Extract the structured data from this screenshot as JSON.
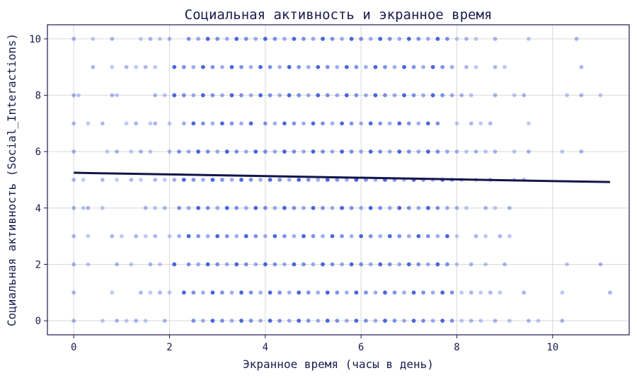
{
  "chart_data": {
    "type": "scatter",
    "title": "Социальная активность и экранное время",
    "xlabel": "Экранное время (часы в день)",
    "ylabel": "Социальная активность (Social_Interactions)",
    "xlim": [
      -0.55,
      11.6
    ],
    "ylim": [
      -0.5,
      10.5
    ],
    "xticks": [
      0,
      2,
      4,
      6,
      8,
      10
    ],
    "yticks": [
      0,
      2,
      4,
      6,
      8,
      10
    ],
    "grid": true,
    "point_color": "#2a4bd7",
    "trend_color": "#14144a",
    "trendline": {
      "x": [
        0,
        11.2
      ],
      "y": [
        5.25,
        4.92
      ]
    },
    "points": [
      {
        "y": 10,
        "x": [
          0,
          0.4,
          0.8,
          1.4,
          1.6,
          1.8,
          2.0,
          2.4,
          2.6,
          2.8,
          3.0,
          3.2,
          3.4,
          3.6,
          3.8,
          4.0,
          4.2,
          4.4,
          4.6,
          4.8,
          5.0,
          5.2,
          5.4,
          5.6,
          5.8,
          6.0,
          6.2,
          6.4,
          6.6,
          6.8,
          7.0,
          7.2,
          7.4,
          7.6,
          7.8,
          8.0,
          8.2,
          8.4,
          8.8,
          9.5,
          10.5
        ]
      },
      {
        "y": 9,
        "x": [
          0.4,
          0.8,
          1.1,
          1.3,
          1.5,
          1.7,
          2.1,
          2.3,
          2.5,
          2.7,
          2.9,
          3.1,
          3.3,
          3.5,
          3.7,
          3.9,
          4.1,
          4.3,
          4.5,
          4.7,
          4.9,
          5.1,
          5.3,
          5.5,
          5.7,
          5.9,
          6.1,
          6.3,
          6.5,
          6.7,
          6.9,
          7.1,
          7.3,
          7.5,
          7.7,
          7.9,
          8.2,
          8.4,
          8.8,
          9.0,
          10.6
        ]
      },
      {
        "y": 8,
        "x": [
          0,
          0.1,
          0.8,
          0.9,
          1.7,
          1.9,
          2.1,
          2.3,
          2.5,
          2.7,
          2.9,
          3.1,
          3.3,
          3.5,
          3.7,
          3.9,
          4.1,
          4.3,
          4.5,
          4.7,
          4.9,
          5.1,
          5.3,
          5.5,
          5.7,
          5.9,
          6.1,
          6.3,
          6.5,
          6.7,
          6.9,
          7.1,
          7.3,
          7.5,
          7.7,
          7.9,
          8.1,
          8.3,
          8.8,
          9.2,
          9.4,
          10.3,
          10.6,
          11.0
        ]
      },
      {
        "y": 7,
        "x": [
          0,
          0.3,
          0.6,
          1.1,
          1.3,
          1.6,
          1.7,
          2.0,
          2.3,
          2.5,
          2.7,
          2.9,
          3.1,
          3.3,
          3.5,
          3.7,
          4.0,
          4.2,
          4.4,
          4.6,
          4.8,
          5.0,
          5.2,
          5.4,
          5.6,
          5.8,
          6.0,
          6.2,
          6.4,
          6.6,
          6.8,
          7.0,
          7.2,
          7.4,
          7.6,
          8.0,
          8.3,
          8.5,
          8.7,
          9.5
        ]
      },
      {
        "y": 6,
        "x": [
          0,
          0.7,
          0.9,
          1.2,
          1.4,
          1.6,
          2.0,
          2.2,
          2.4,
          2.6,
          2.8,
          3.0,
          3.2,
          3.4,
          3.6,
          3.8,
          4.0,
          4.2,
          4.4,
          4.6,
          4.8,
          5.0,
          5.2,
          5.4,
          5.6,
          5.8,
          6.0,
          6.2,
          6.4,
          6.6,
          6.8,
          7.0,
          7.2,
          7.4,
          7.6,
          7.8,
          8.0,
          8.2,
          8.4,
          8.6,
          8.8,
          9.2,
          9.5,
          10.2,
          10.6
        ]
      },
      {
        "y": 5,
        "x": [
          0,
          0.2,
          0.6,
          0.9,
          1.2,
          1.4,
          1.7,
          1.9,
          2.1,
          2.3,
          2.5,
          2.7,
          2.9,
          3.1,
          3.3,
          3.5,
          3.7,
          3.9,
          4.1,
          4.3,
          4.5,
          4.7,
          4.9,
          5.1,
          5.3,
          5.5,
          5.7,
          5.9,
          6.1,
          6.3,
          6.5,
          6.7,
          6.9,
          7.1,
          7.3,
          7.5,
          7.7,
          7.9,
          8.1,
          8.4,
          8.7,
          9.2,
          9.4
        ]
      },
      {
        "y": 4,
        "x": [
          0,
          0.2,
          0.3,
          0.6,
          1.5,
          1.7,
          1.9,
          2.2,
          2.4,
          2.6,
          2.8,
          3.0,
          3.2,
          3.4,
          3.6,
          3.8,
          4.0,
          4.2,
          4.4,
          4.6,
          4.8,
          5.0,
          5.2,
          5.4,
          5.6,
          5.8,
          6.0,
          6.2,
          6.4,
          6.6,
          6.8,
          7.0,
          7.2,
          7.4,
          7.6,
          7.8,
          8.0,
          8.2,
          8.6,
          8.8,
          9.1
        ]
      },
      {
        "y": 3,
        "x": [
          0,
          0.3,
          0.8,
          1.0,
          1.3,
          1.5,
          1.7,
          2.0,
          2.2,
          2.4,
          2.6,
          2.8,
          3.0,
          3.2,
          3.4,
          3.6,
          3.8,
          4.0,
          4.2,
          4.4,
          4.6,
          4.8,
          5.0,
          5.2,
          5.4,
          5.6,
          5.8,
          6.0,
          6.2,
          6.4,
          6.6,
          6.8,
          7.0,
          7.2,
          7.4,
          7.6,
          7.8,
          8.0,
          8.4,
          8.6,
          8.9,
          9.1
        ]
      },
      {
        "y": 2,
        "x": [
          0,
          0.3,
          0.9,
          1.2,
          1.6,
          1.8,
          2.1,
          2.4,
          2.6,
          2.8,
          3.0,
          3.2,
          3.4,
          3.6,
          3.8,
          4.0,
          4.2,
          4.4,
          4.6,
          4.8,
          5.0,
          5.2,
          5.4,
          5.6,
          5.8,
          6.0,
          6.2,
          6.4,
          6.6,
          6.8,
          7.0,
          7.2,
          7.4,
          7.6,
          7.8,
          8.0,
          8.3,
          8.6,
          9.0,
          10.3,
          11.0
        ]
      },
      {
        "y": 1,
        "x": [
          0,
          0.8,
          1.4,
          1.6,
          1.8,
          2.0,
          2.3,
          2.5,
          2.7,
          2.9,
          3.1,
          3.3,
          3.5,
          3.7,
          3.9,
          4.1,
          4.3,
          4.5,
          4.7,
          4.9,
          5.1,
          5.3,
          5.5,
          5.7,
          5.9,
          6.1,
          6.3,
          6.5,
          6.7,
          6.9,
          7.1,
          7.3,
          7.5,
          7.7,
          7.9,
          8.1,
          8.3,
          8.5,
          8.7,
          8.9,
          9.4,
          10.2,
          11.2
        ]
      },
      {
        "y": 0,
        "x": [
          0,
          0.6,
          0.9,
          1.1,
          1.3,
          1.5,
          1.9,
          2.5,
          2.7,
          2.9,
          3.1,
          3.3,
          3.5,
          3.7,
          3.9,
          4.1,
          4.3,
          4.5,
          4.7,
          4.9,
          5.1,
          5.3,
          5.5,
          5.7,
          5.9,
          6.1,
          6.3,
          6.5,
          6.7,
          6.9,
          7.1,
          7.3,
          7.5,
          7.7,
          7.9,
          8.1,
          8.3,
          8.5,
          8.8,
          9.1,
          9.5,
          9.7,
          10.2
        ]
      }
    ]
  }
}
